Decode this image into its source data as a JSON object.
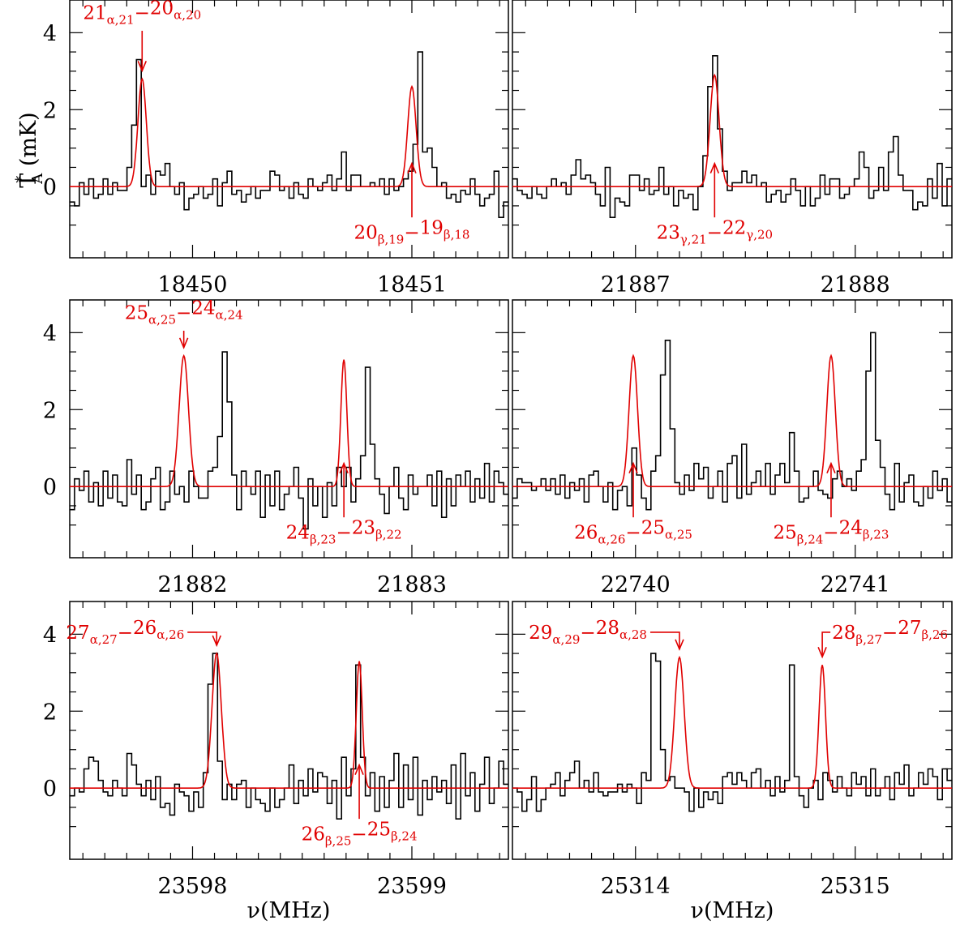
{
  "ylabel": {
    "main": "T",
    "sup": "*",
    "sub": "A",
    "unit": " (mK)"
  },
  "xlabel": "ν(MHz)",
  "y_ticks": [
    0,
    2,
    4
  ],
  "colors": {
    "observed": "#000000",
    "model": "#e00000",
    "label": "#e00000"
  },
  "chart_data": [
    {
      "type": "line",
      "xlim": [
        18449.44,
        18451.44
      ],
      "ylim": [
        -1.85,
        4.85
      ],
      "x_ticks": [
        18450,
        18451
      ],
      "x_minor_step": 0.1,
      "lines": [
        {
          "center": 18449.77,
          "amp": 2.8,
          "fwhm": 0.045,
          "label_main": [
            "21",
            "20"
          ],
          "label_sub": [
            "α,21",
            "α,20"
          ],
          "arrow_dir": "down",
          "label_place": "above"
        },
        {
          "center": 18451.0,
          "amp": 2.6,
          "fwhm": 0.045,
          "label_main": [
            "20",
            "19"
          ],
          "label_sub": [
            "β,19",
            "β,18"
          ],
          "arrow_dir": "up",
          "label_place": "below"
        }
      ],
      "observed": [
        -0.4,
        -0.5,
        0.1,
        -0.2,
        0.2,
        -0.3,
        -0.2,
        0.2,
        -0.2,
        0.1,
        -0.1,
        -0.1,
        0.5,
        1.6,
        3.3,
        0.0,
        0.3,
        -0.2,
        0.4,
        0.3,
        0.6,
        0.0,
        -0.2,
        0.1,
        -0.6,
        -0.3,
        -0.2,
        0.0,
        -0.3,
        -0.2,
        0.2,
        -0.5,
        0.1,
        0.4,
        -0.2,
        -0.1,
        -0.4,
        -0.2,
        0.0,
        -0.3,
        -0.1,
        -0.1,
        0.4,
        0.3,
        -0.1,
        0.0,
        -0.3,
        0.1,
        -0.2,
        -0.3,
        0.2,
        0.0,
        -0.1,
        0.1,
        0.3,
        -0.1,
        0.2,
        0.9,
        -0.1,
        0.3,
        0.3,
        0.0,
        0.0,
        0.1,
        0.0,
        0.2,
        -0.2,
        0.2,
        -0.1,
        0.0,
        0.2,
        0.4,
        1.1,
        3.5,
        0.9,
        1.0,
        0.5,
        0.0,
        0.1,
        -0.3,
        -0.2,
        -0.4,
        -0.1,
        -0.2,
        0.2,
        -0.2,
        -0.5,
        -0.3,
        -0.2,
        0.4,
        -0.8,
        -0.4
      ]
    },
    {
      "type": "line",
      "xlim": [
        21886.44,
        21888.44
      ],
      "ylim": [
        -1.85,
        4.85
      ],
      "x_ticks": [
        21887,
        21888
      ],
      "x_minor_step": 0.1,
      "lines": [
        {
          "center": 21887.36,
          "amp": 2.9,
          "fwhm": 0.048,
          "label_main": [
            "23",
            "22"
          ],
          "label_sub": [
            "γ,21",
            "γ,20"
          ],
          "arrow_dir": "up",
          "label_place": "below"
        }
      ],
      "observed": [
        0.2,
        -0.1,
        -0.2,
        -0.3,
        0.0,
        -0.2,
        -0.3,
        0.0,
        0.2,
        0.0,
        0.1,
        -0.2,
        0.3,
        0.7,
        0.2,
        0.3,
        0.1,
        -0.2,
        -0.5,
        0.5,
        -0.8,
        -0.3,
        -0.4,
        -0.5,
        0.3,
        0.3,
        -0.1,
        0.2,
        -0.2,
        -0.1,
        0.5,
        -0.2,
        0.0,
        -0.5,
        -0.1,
        -0.3,
        -0.2,
        -0.6,
        0.0,
        0.8,
        2.6,
        3.4,
        1.5,
        0.4,
        -0.1,
        0.1,
        0.1,
        0.4,
        0.1,
        0.3,
        0.0,
        0.1,
        -0.4,
        -0.2,
        -0.1,
        -0.4,
        -0.2,
        0.2,
        -0.1,
        -0.5,
        0.0,
        -0.5,
        -0.3,
        0.3,
        -0.2,
        0.2,
        0.2,
        -0.3,
        -0.2,
        0.0,
        0.2,
        0.9,
        0.5,
        -0.3,
        -0.1,
        0.5,
        -0.1,
        0.9,
        1.3,
        0.3,
        -0.1,
        -0.1,
        -0.6,
        -0.4,
        -0.5,
        0.2,
        -0.3,
        0.6,
        -0.5,
        0.2
      ]
    },
    {
      "type": "line",
      "xlim": [
        21881.44,
        21883.44
      ],
      "ylim": [
        -1.85,
        4.85
      ],
      "x_ticks": [
        21882,
        21883
      ],
      "x_minor_step": 0.1,
      "lines": [
        {
          "center": 21881.96,
          "amp": 3.4,
          "fwhm": 0.05,
          "label_main": [
            "25",
            "24"
          ],
          "label_sub": [
            "α,25",
            "α,24"
          ],
          "arrow_dir": "down",
          "label_place": "above"
        },
        {
          "center": 21882.69,
          "amp": 3.3,
          "fwhm": 0.032,
          "label_main": [
            "24",
            "23"
          ],
          "label_sub": [
            "β,23",
            "β,22"
          ],
          "arrow_dir": "up",
          "label_place": "below"
        }
      ],
      "observed": [
        -0.6,
        0.2,
        -0.1,
        0.4,
        -0.4,
        0.1,
        -0.5,
        0.4,
        -0.3,
        0.3,
        -0.4,
        -0.5,
        0.7,
        -0.2,
        0.3,
        -0.6,
        -0.4,
        0.2,
        0.5,
        -0.6,
        -0.4,
        0.4,
        -0.2,
        0.0,
        -0.4,
        0.4,
        0.0,
        -0.3,
        -0.3,
        0.4,
        0.5,
        1.3,
        3.5,
        2.2,
        0.3,
        -0.6,
        0.4,
        0.0,
        -0.2,
        0.4,
        -0.8,
        0.3,
        -0.5,
        0.4,
        -0.6,
        -0.2,
        0.0,
        0.5,
        -0.3,
        -1.1,
        0.2,
        -0.5,
        0.0,
        -0.8,
        0.1,
        -0.5,
        0.5,
        0.0,
        0.5,
        -0.4,
        0.2,
        0.8,
        3.1,
        1.1,
        0.2,
        -0.2,
        -0.7,
        0.0,
        0.5,
        -0.3,
        -0.6,
        0.3,
        -0.2,
        0.0,
        0.0,
        0.3,
        -0.5,
        0.4,
        -0.8,
        0.2,
        -0.5,
        0.3,
        0.0,
        0.4,
        -0.4,
        0.2,
        -0.3,
        0.6,
        -0.4,
        0.4,
        0.1,
        -0.2
      ]
    },
    {
      "type": "line",
      "xlim": [
        22739.44,
        22741.44
      ],
      "ylim": [
        -1.85,
        4.85
      ],
      "x_ticks": [
        22740,
        22741
      ],
      "x_minor_step": 0.1,
      "lines": [
        {
          "center": 22739.99,
          "amp": 3.4,
          "fwhm": 0.045,
          "label_main": [
            "26",
            "25"
          ],
          "label_sub": [
            "α,26",
            "α,25"
          ],
          "arrow_dir": "up",
          "label_place": "below"
        },
        {
          "center": 22740.89,
          "amp": 3.4,
          "fwhm": 0.045,
          "label_main": [
            "25",
            "24"
          ],
          "label_sub": [
            "β,24",
            "β,23"
          ],
          "arrow_dir": "up",
          "label_place": "below"
        }
      ],
      "observed": [
        -0.3,
        0.2,
        0.1,
        0.1,
        -0.1,
        0.0,
        0.2,
        -0.1,
        0.2,
        -0.2,
        0.3,
        -0.3,
        0.1,
        -0.1,
        0.2,
        -0.4,
        0.3,
        0.4,
        0.0,
        -0.4,
        0.1,
        -0.6,
        -0.1,
        0.0,
        -0.5,
        1.0,
        0.3,
        -0.3,
        -0.6,
        0.4,
        0.8,
        2.9,
        3.8,
        1.5,
        0.1,
        -0.2,
        0.3,
        -0.1,
        0.6,
        0.2,
        0.5,
        -0.3,
        0.0,
        0.4,
        -0.4,
        0.6,
        0.8,
        -0.3,
        1.1,
        -0.2,
        0.1,
        0.4,
        0.0,
        0.6,
        -0.2,
        0.3,
        0.6,
        0.1,
        1.4,
        0.4,
        -0.4,
        -0.3,
        0.0,
        0.4,
        -0.1,
        -0.2,
        -0.3,
        0.2,
        0.4,
        0.0,
        0.2,
        -0.1,
        0.4,
        0.7,
        3.0,
        4.0,
        1.2,
        0.5,
        -0.2,
        -0.6,
        0.6,
        -0.4,
        0.1,
        0.3,
        -0.4,
        -0.5,
        0.0,
        -0.3,
        0.4,
        -0.1,
        0.2,
        -0.4
      ]
    },
    {
      "type": "line",
      "xlim": [
        23597.44,
        23599.44
      ],
      "ylim": [
        -1.85,
        4.85
      ],
      "x_ticks": [
        23598,
        23599
      ],
      "x_minor_step": 0.1,
      "lines": [
        {
          "center": 23598.11,
          "amp": 3.5,
          "fwhm": 0.05,
          "label_main": [
            "27",
            "26"
          ],
          "label_sub": [
            "α,27",
            "α,26"
          ],
          "arrow_dir": "down",
          "label_place": "left-hook"
        },
        {
          "center": 23598.76,
          "amp": 3.3,
          "fwhm": 0.032,
          "label_main": [
            "26",
            "25"
          ],
          "label_sub": [
            "β,25",
            "β,24"
          ],
          "arrow_dir": "up",
          "label_place": "below"
        }
      ],
      "observed": [
        -0.2,
        0.0,
        -0.1,
        0.5,
        0.8,
        0.7,
        0.2,
        -0.1,
        -0.2,
        0.2,
        0.0,
        -0.2,
        0.9,
        0.6,
        0.1,
        -0.2,
        0.2,
        -0.3,
        0.3,
        -0.5,
        -0.4,
        -0.7,
        0.1,
        -0.1,
        -0.2,
        -0.6,
        -0.1,
        -0.5,
        0.4,
        2.7,
        3.5,
        0.7,
        -0.3,
        0.1,
        -0.3,
        0.1,
        0.2,
        -0.5,
        0.0,
        -0.3,
        -0.4,
        -0.6,
        0.0,
        -0.5,
        -0.3,
        0.0,
        0.6,
        -0.4,
        0.2,
        -0.2,
        0.5,
        -0.1,
        0.4,
        0.3,
        -0.4,
        0.2,
        -0.8,
        0.8,
        -0.2,
        0.5,
        3.2,
        0.8,
        -0.2,
        0.4,
        -0.6,
        0.3,
        -0.5,
        0.2,
        0.9,
        -0.5,
        0.6,
        -0.3,
        0.8,
        -0.7,
        0.2,
        -0.3,
        0.3,
        -0.1,
        0.2,
        -0.4,
        0.6,
        -0.8,
        0.9,
        -0.2,
        0.4,
        -0.6,
        0.1,
        0.8,
        -0.4,
        0.0,
        0.7,
        0.1
      ]
    },
    {
      "type": "line",
      "xlim": [
        25313.44,
        25315.44
      ],
      "ylim": [
        -1.85,
        4.85
      ],
      "x_ticks": [
        25314,
        25315
      ],
      "x_minor_step": 0.1,
      "lines": [
        {
          "center": 25314.2,
          "amp": 3.4,
          "fwhm": 0.05,
          "label_main": [
            "29",
            "28"
          ],
          "label_sub": [
            "α,29",
            "α,28"
          ],
          "arrow_dir": "down",
          "label_place": "left-hook"
        },
        {
          "center": 25314.85,
          "amp": 3.2,
          "fwhm": 0.035,
          "label_main": [
            "28",
            "27"
          ],
          "label_sub": [
            "β,27",
            "β,26"
          ],
          "arrow_dir": "down",
          "label_place": "right-hook"
        }
      ],
      "observed": [
        0.0,
        -0.1,
        -0.6,
        -0.3,
        0.3,
        -0.6,
        -0.3,
        0.0,
        0.1,
        0.4,
        -0.2,
        0.2,
        0.4,
        0.7,
        0.0,
        0.2,
        -0.1,
        0.4,
        -0.1,
        -0.2,
        -0.1,
        -0.1,
        0.1,
        -0.1,
        0.1,
        0.0,
        -0.4,
        0.4,
        0.2,
        3.5,
        3.3,
        1.0,
        0.2,
        0.3,
        0.0,
        0.0,
        -0.1,
        -0.6,
        0.0,
        -0.5,
        -0.1,
        -0.3,
        -0.1,
        -0.4,
        0.3,
        0.4,
        0.1,
        0.4,
        0.2,
        0.0,
        0.4,
        0.5,
        0.0,
        0.2,
        -0.2,
        0.3,
        -0.1,
        0.2,
        3.2,
        0.3,
        -0.2,
        -0.5,
        0.0,
        0.2,
        -0.3,
        0.4,
        0.2,
        -0.1,
        0.3,
        0.0,
        -0.2,
        0.4,
        0.1,
        0.3,
        -0.2,
        0.5,
        -0.2,
        0.0,
        0.3,
        -0.3,
        0.4,
        0.1,
        0.6,
        -0.2,
        0.0,
        0.4,
        0.1,
        0.5,
        0.3,
        -0.3,
        0.5,
        0.2
      ]
    }
  ]
}
